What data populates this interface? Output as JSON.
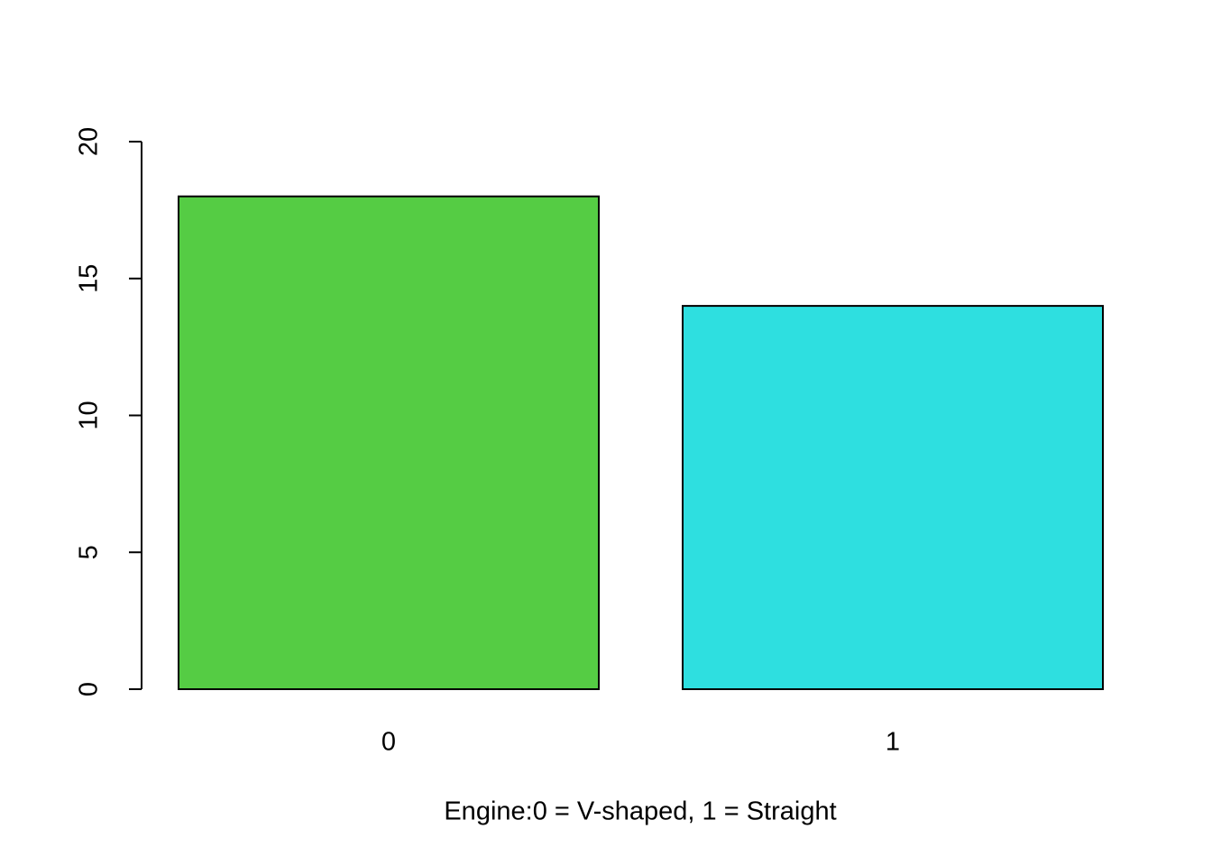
{
  "chart_data": {
    "type": "bar",
    "x_label": "Engine:0 = V-shaped, 1 = Straight",
    "categories": [
      "0",
      "1"
    ],
    "values": [
      18,
      14
    ],
    "colors": [
      "#55cc44",
      "#2edfe0"
    ],
    "ylim": [
      0,
      20
    ],
    "yticks": [
      0,
      5,
      10,
      15,
      20
    ]
  }
}
